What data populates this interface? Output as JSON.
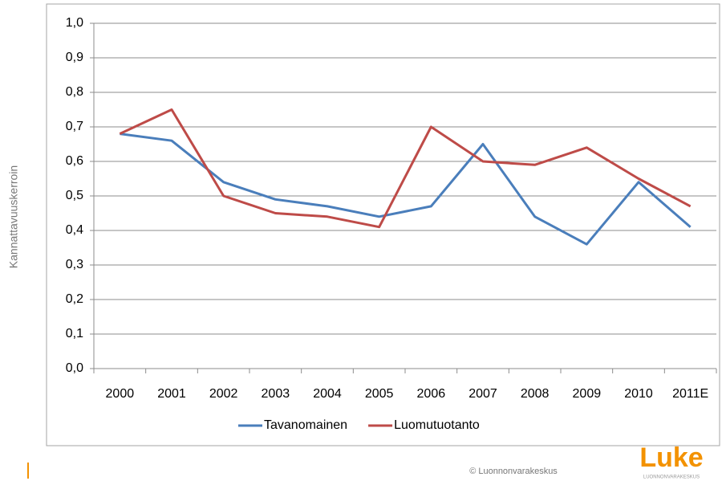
{
  "chart_data": {
    "type": "line",
    "y_label": "Kannattavuuskerroin",
    "categories": [
      "2000",
      "2001",
      "2002",
      "2003",
      "2004",
      "2005",
      "2006",
      "2007",
      "2008",
      "2009",
      "2010",
      "2011E"
    ],
    "series": [
      {
        "name": "Tavanomainen",
        "color": "#4a7ebb",
        "values": [
          0.68,
          0.66,
          0.54,
          0.49,
          0.47,
          0.44,
          0.47,
          0.65,
          0.44,
          0.36,
          0.54,
          0.41
        ]
      },
      {
        "name": "Luomutuotanto",
        "color": "#be4b48",
        "values": [
          0.68,
          0.75,
          0.5,
          0.45,
          0.44,
          0.41,
          0.7,
          0.6,
          0.59,
          0.64,
          0.55,
          0.47
        ]
      }
    ],
    "ylim": [
      0,
      1
    ],
    "yticks": [
      {
        "value": 0,
        "label": "0,0"
      },
      {
        "value": 0.1,
        "label": "0,1"
      },
      {
        "value": 0.2,
        "label": "0,2"
      },
      {
        "value": 0.3,
        "label": "0,3"
      },
      {
        "value": 0.4,
        "label": "0,4"
      },
      {
        "value": 0.5,
        "label": "0,5"
      },
      {
        "value": 0.6,
        "label": "0,6"
      },
      {
        "value": 0.7,
        "label": "0,7"
      },
      {
        "value": 0.8,
        "label": "0,8"
      },
      {
        "value": 0.9,
        "label": "0,9"
      },
      {
        "value": 1,
        "label": "1,0"
      }
    ],
    "grid": true,
    "legend": "bottom"
  },
  "footer": {
    "copyright": "© Luonnonvarakeskus",
    "logo": "Luke",
    "logo_subtitle": "LUONNONVARAKESKUS"
  }
}
